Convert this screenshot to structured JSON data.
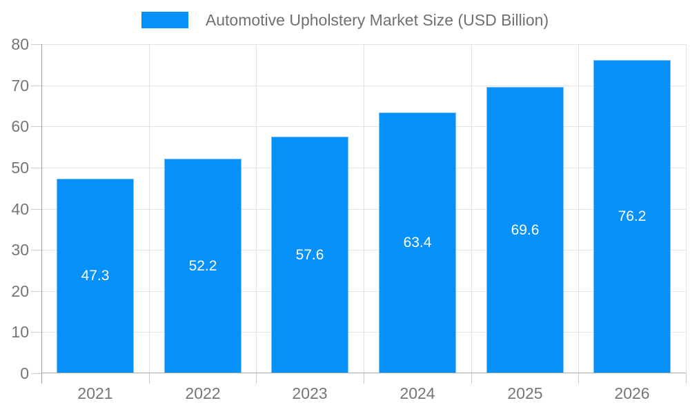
{
  "chart_data": {
    "type": "bar",
    "series_name": "Automotive Upholstery Market Size (USD Billion)",
    "categories": [
      "2021",
      "2022",
      "2023",
      "2024",
      "2025",
      "2026"
    ],
    "values": [
      47.3,
      52.2,
      57.6,
      63.4,
      69.6,
      76.2
    ],
    "value_labels": [
      "47.3",
      "52.2",
      "57.6",
      "63.4",
      "69.6",
      "76.2"
    ],
    "ylim": [
      0,
      80
    ],
    "yticks": [
      0,
      10,
      20,
      30,
      40,
      50,
      60,
      70,
      80
    ],
    "legend_position": "top",
    "grid": true,
    "value_label_position": "center-inside"
  },
  "colors": {
    "bar_fill": "#0691fa",
    "bar_border": "#7dc1f8",
    "gridline": "#e3e3e3",
    "axis_line": "#9e9e9e",
    "baseline": "#aaaaaa",
    "tick": "#cbcbcb",
    "axis_text": "#757575",
    "legend_text": "#707070",
    "value_text": "#ffffff",
    "background": "#ffffff"
  }
}
